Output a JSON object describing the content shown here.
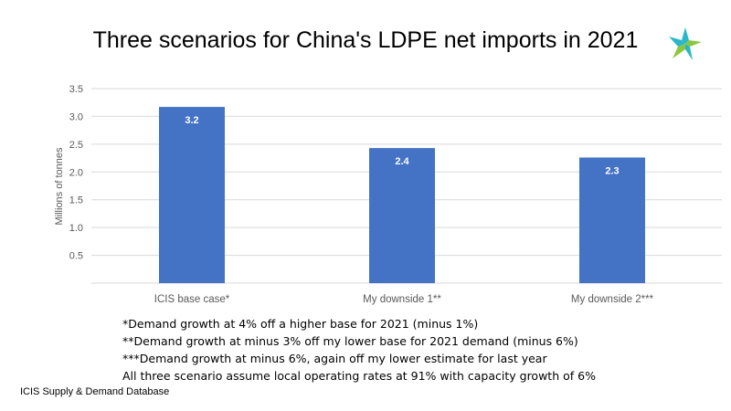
{
  "title": "Three scenarios for China's LDPE net imports in 2021",
  "logo_icon": "icis-star-logo-icon",
  "colors": {
    "bar": "#4472C4",
    "grid": "#d9d9d9",
    "axis_text": "#595959",
    "logo_teal": "#2bb7c9",
    "logo_green": "#8cc63f"
  },
  "chart_data": {
    "type": "bar",
    "categories": [
      "ICIS base case*",
      "My downside 1**",
      "My downside 2***"
    ],
    "values": [
      3.17,
      2.43,
      2.26
    ],
    "data_labels": [
      "3.2",
      "2.4",
      "2.3"
    ],
    "title": "Three scenarios for China's LDPE net imports in 2021",
    "xlabel": "",
    "ylabel": "Millions of tonnes",
    "ylim": [
      0,
      3.5
    ],
    "yticks": [
      "0.5",
      "1.0",
      "1.5",
      "2.0",
      "2.5",
      "3.0",
      "3.5"
    ],
    "grid": true,
    "legend": "none"
  },
  "notes": [
    "*Demand growth at 4% off a higher base for 2021 (minus 1%)",
    "**Demand growth at minus 3% off my lower base for 2021 demand (minus 6%)",
    "***Demand growth at minus 6%, again off my lower estimate for last year",
    "All three scenario assume local operating rates at 91% with capacity growth of 6%"
  ],
  "source": "ICIS Supply  & Demand Database"
}
